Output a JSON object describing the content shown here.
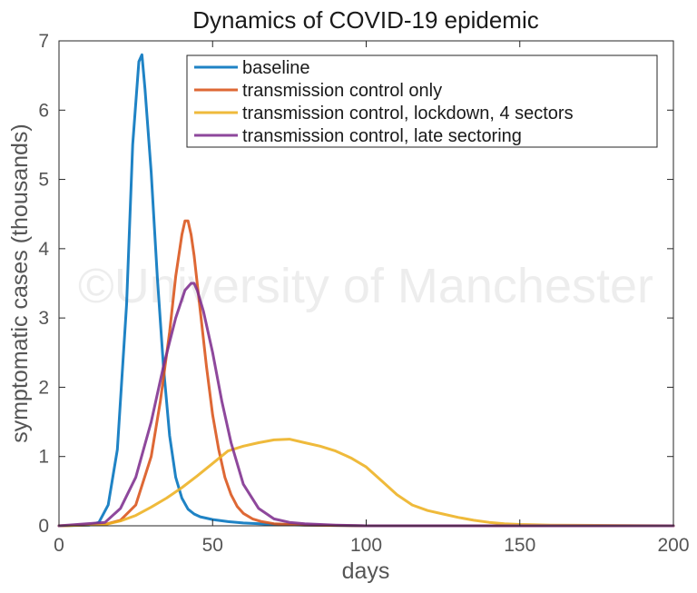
{
  "chart_data": {
    "type": "line",
    "title": "Dynamics of COVID-19 epidemic",
    "xlabel": "days",
    "ylabel": "symptomatic cases (thousands)",
    "xlim": [
      0,
      200
    ],
    "ylim": [
      0,
      7
    ],
    "xticks": [
      0,
      50,
      100,
      150,
      200
    ],
    "yticks": [
      0,
      1,
      2,
      3,
      4,
      5,
      6,
      7
    ],
    "grid": false,
    "legend_position": "top-right",
    "watermark": "©University of Manchester",
    "series": [
      {
        "name": "baseline",
        "color": "#0072bd",
        "x": [
          0,
          10,
          13,
          16,
          19,
          22,
          24,
          26,
          27,
          28,
          30,
          32,
          34,
          36,
          38,
          40,
          42,
          44,
          46,
          50,
          55,
          60,
          70,
          80,
          100,
          200
        ],
        "y": [
          0,
          0.01,
          0.05,
          0.3,
          1.1,
          3.2,
          5.5,
          6.7,
          6.8,
          6.3,
          5.1,
          3.6,
          2.3,
          1.3,
          0.7,
          0.4,
          0.24,
          0.17,
          0.13,
          0.09,
          0.06,
          0.04,
          0.02,
          0.01,
          0,
          0
        ]
      },
      {
        "name": "transmission control only",
        "color": "#d95319",
        "x": [
          0,
          15,
          20,
          25,
          30,
          33,
          36,
          38,
          40,
          41,
          42,
          43,
          44,
          46,
          48,
          50,
          52,
          54,
          56,
          58,
          60,
          63,
          66,
          70,
          80,
          100,
          200
        ],
        "y": [
          0,
          0.02,
          0.08,
          0.3,
          1.0,
          1.8,
          2.8,
          3.6,
          4.2,
          4.4,
          4.4,
          4.2,
          3.9,
          3.1,
          2.3,
          1.6,
          1.1,
          0.7,
          0.45,
          0.28,
          0.18,
          0.1,
          0.06,
          0.03,
          0.01,
          0,
          0
        ]
      },
      {
        "name": "transmission control, lockdown, 4 sectors",
        "color": "#edb120",
        "x": [
          0,
          15,
          20,
          25,
          30,
          35,
          40,
          45,
          50,
          55,
          60,
          65,
          70,
          75,
          80,
          85,
          90,
          95,
          100,
          105,
          110,
          115,
          120,
          125,
          130,
          135,
          140,
          145,
          150,
          160,
          200
        ],
        "y": [
          0,
          0.02,
          0.07,
          0.15,
          0.27,
          0.4,
          0.55,
          0.72,
          0.9,
          1.08,
          1.15,
          1.2,
          1.24,
          1.25,
          1.2,
          1.15,
          1.08,
          0.98,
          0.85,
          0.65,
          0.45,
          0.3,
          0.22,
          0.17,
          0.12,
          0.08,
          0.05,
          0.03,
          0.02,
          0.01,
          0
        ]
      },
      {
        "name": "transmission control, late sectoring",
        "color": "#7e2f8e",
        "x": [
          0,
          15,
          20,
          25,
          30,
          34,
          38,
          41,
          43,
          44,
          45,
          47,
          50,
          53,
          56,
          60,
          65,
          70,
          75,
          80,
          90,
          100,
          200
        ],
        "y": [
          0,
          0.05,
          0.25,
          0.7,
          1.5,
          2.3,
          3.0,
          3.4,
          3.5,
          3.5,
          3.4,
          3.1,
          2.5,
          1.8,
          1.2,
          0.6,
          0.25,
          0.1,
          0.05,
          0.03,
          0.01,
          0,
          0
        ]
      }
    ]
  }
}
